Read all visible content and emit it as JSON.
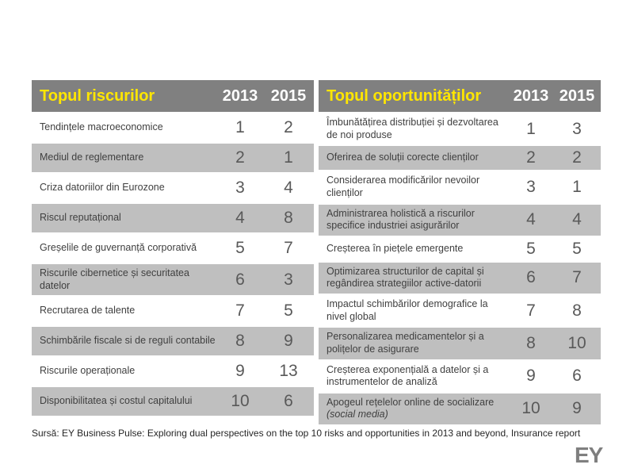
{
  "colors": {
    "header_bg": "#808080",
    "title_yellow": "#FFE600",
    "year_text": "#FFFFFF",
    "row_bg": "#FFFFFF",
    "row_alt_bg": "#BFBFBF",
    "label_text": "#404040",
    "rank_text": "#595959",
    "logo_gray": "#7F7F7F"
  },
  "tables": [
    {
      "title": "Topul riscurilor",
      "years": [
        "2013",
        "2015"
      ],
      "rows": [
        {
          "label": "Tendințele macroeconomice",
          "y2013": "1",
          "y2015": "2"
        },
        {
          "label": "Mediul de reglementare",
          "y2013": "2",
          "y2015": "1"
        },
        {
          "label": "Criza datoriilor din Eurozone",
          "y2013": "3",
          "y2015": "4"
        },
        {
          "label": "Riscul reputațional",
          "y2013": "4",
          "y2015": "8"
        },
        {
          "label": "Greșelile de guvernanță corporativă",
          "y2013": "5",
          "y2015": "7"
        },
        {
          "label": "Riscurile cibernetice și securitatea datelor",
          "y2013": "6",
          "y2015": "3"
        },
        {
          "label": "Recrutarea de talente",
          "y2013": "7",
          "y2015": "5"
        },
        {
          "label": "Schimbările fiscale si de reguli contabile",
          "y2013": "8",
          "y2015": "9"
        },
        {
          "label": "Riscurile operaționale",
          "y2013": "9",
          "y2015": "13"
        },
        {
          "label": "Disponibilitatea și costul capitalului",
          "y2013": "10",
          "y2015": "6"
        }
      ]
    },
    {
      "title": "Topul oportunităților",
      "years": [
        "2013",
        "2015"
      ],
      "rows": [
        {
          "label": "Îmbunătățirea distribuției  și dezvoltarea de noi produse",
          "y2013": "1",
          "y2015": "3"
        },
        {
          "label": "Oferirea de soluții  corecte clienților",
          "y2013": "2",
          "y2015": "2"
        },
        {
          "label": "Considerarea modificărilor nevoilor clienților",
          "y2013": "3",
          "y2015": "1"
        },
        {
          "label": "Administrarea holistică  a riscurilor specifice industriei asigurărilor",
          "y2013": "4",
          "y2015": "4"
        },
        {
          "label": "Creșterea în piețele  emergente",
          "y2013": "5",
          "y2015": "5"
        },
        {
          "label": "Optimizarea structurilor de capital și regândirea strategiilor  active-datorii",
          "y2013": "6",
          "y2015": "7"
        },
        {
          "label": "Impactul schimbărilor demografice la nivel global",
          "y2013": "7",
          "y2015": "8"
        },
        {
          "label": "Personalizarea medicamentelor și a polițelor de asigurare",
          "y2013": "8",
          "y2015": "10"
        },
        {
          "label": "Creșterea exponențială  a datelor și a instrumentelor de analiză",
          "y2013": "9",
          "y2015": "6"
        },
        {
          "label": "Apogeul rețelelor online de socializare",
          "note": "(social media)",
          "y2013": "10",
          "y2015": "9"
        }
      ]
    }
  ],
  "footer": {
    "source": "Sursă: EY Business Pulse: Exploring dual perspectives on the top 10 risks and opportunities in 2013 and beyond, Insurance report",
    "logo": "EY"
  }
}
